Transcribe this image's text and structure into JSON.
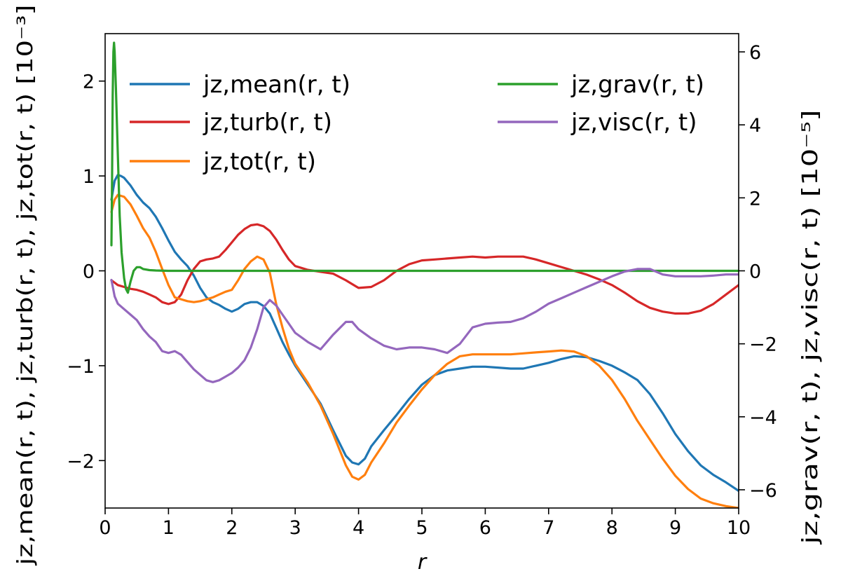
{
  "chart_data": {
    "type": "line",
    "xlabel": "r",
    "ylabel_left": "j̇z,mean(r, t),  j̇z,turb(r, t),  j̇z,tot(r, t) [10⁻³]",
    "ylabel_right": "j̇z,grav(r, t),  j̇z,visc(r, t) [10⁻⁵]",
    "xlim": [
      0,
      10
    ],
    "ylim_left": [
      -2.5,
      2.5
    ],
    "ylim_right": [
      -6.5,
      6.5
    ],
    "grid": false,
    "legend_placement": "top",
    "x_ticks": [
      "0",
      "1",
      "2",
      "3",
      "4",
      "5",
      "6",
      "7",
      "8",
      "9",
      "10"
    ],
    "y_ticks_left": [
      "−2",
      "−1",
      "0",
      "1",
      "2"
    ],
    "y_ticks_right": [
      "−6",
      "−4",
      "−2",
      "0",
      "2",
      "4",
      "6"
    ],
    "series": [
      {
        "name": "j̇z,mean(r, t)",
        "axis": "left",
        "color": "#1f77b4",
        "x": [
          0.1,
          0.15,
          0.2,
          0.25,
          0.3,
          0.4,
          0.5,
          0.6,
          0.7,
          0.8,
          0.9,
          1.0,
          1.1,
          1.2,
          1.3,
          1.4,
          1.5,
          1.6,
          1.7,
          1.8,
          1.9,
          2.0,
          2.1,
          2.2,
          2.3,
          2.4,
          2.5,
          2.6,
          2.7,
          2.8,
          2.9,
          3.0,
          3.2,
          3.4,
          3.6,
          3.8,
          3.9,
          4.0,
          4.1,
          4.2,
          4.4,
          4.6,
          4.8,
          5.0,
          5.2,
          5.4,
          5.6,
          5.8,
          6.0,
          6.2,
          6.4,
          6.6,
          6.8,
          7.0,
          7.2,
          7.4,
          7.6,
          7.8,
          8.0,
          8.2,
          8.4,
          8.6,
          8.8,
          9.0,
          9.2,
          9.4,
          9.6,
          9.8,
          10.0
        ],
        "y": [
          0.75,
          0.95,
          1.01,
          1.0,
          0.98,
          0.9,
          0.8,
          0.72,
          0.66,
          0.57,
          0.45,
          0.32,
          0.2,
          0.12,
          0.05,
          -0.05,
          -0.18,
          -0.28,
          -0.33,
          -0.36,
          -0.4,
          -0.43,
          -0.4,
          -0.35,
          -0.33,
          -0.33,
          -0.37,
          -0.45,
          -0.6,
          -0.75,
          -0.88,
          -1.0,
          -1.2,
          -1.4,
          -1.68,
          -1.95,
          -2.02,
          -2.04,
          -1.98,
          -1.85,
          -1.68,
          -1.52,
          -1.35,
          -1.2,
          -1.1,
          -1.05,
          -1.03,
          -1.01,
          -1.01,
          -1.02,
          -1.03,
          -1.03,
          -1.0,
          -0.97,
          -0.93,
          -0.9,
          -0.91,
          -0.95,
          -1.0,
          -1.07,
          -1.15,
          -1.3,
          -1.5,
          -1.72,
          -1.9,
          -2.05,
          -2.15,
          -2.23,
          -2.32
        ]
      },
      {
        "name": "j̇z,turb(r, t)",
        "axis": "left",
        "color": "#d62728",
        "x": [
          0.1,
          0.2,
          0.3,
          0.4,
          0.5,
          0.6,
          0.7,
          0.8,
          0.9,
          1.0,
          1.1,
          1.2,
          1.3,
          1.4,
          1.5,
          1.6,
          1.7,
          1.8,
          1.9,
          2.0,
          2.1,
          2.2,
          2.3,
          2.4,
          2.5,
          2.6,
          2.7,
          2.8,
          2.9,
          3.0,
          3.2,
          3.4,
          3.6,
          3.8,
          4.0,
          4.2,
          4.4,
          4.6,
          4.8,
          5.0,
          5.2,
          5.4,
          5.6,
          5.8,
          6.0,
          6.2,
          6.4,
          6.6,
          6.8,
          7.0,
          7.2,
          7.4,
          7.6,
          7.8,
          8.0,
          8.2,
          8.4,
          8.6,
          8.8,
          9.0,
          9.2,
          9.4,
          9.6,
          9.8,
          10.0
        ],
        "y": [
          -0.1,
          -0.15,
          -0.17,
          -0.19,
          -0.2,
          -0.22,
          -0.25,
          -0.28,
          -0.33,
          -0.35,
          -0.33,
          -0.25,
          -0.1,
          0.02,
          0.1,
          0.12,
          0.13,
          0.15,
          0.22,
          0.3,
          0.38,
          0.44,
          0.48,
          0.49,
          0.47,
          0.42,
          0.33,
          0.22,
          0.12,
          0.05,
          0.01,
          -0.01,
          -0.03,
          -0.1,
          -0.18,
          -0.17,
          -0.1,
          0.0,
          0.07,
          0.11,
          0.12,
          0.13,
          0.14,
          0.15,
          0.14,
          0.15,
          0.15,
          0.15,
          0.12,
          0.08,
          0.04,
          0.0,
          -0.04,
          -0.09,
          -0.15,
          -0.23,
          -0.32,
          -0.39,
          -0.43,
          -0.45,
          -0.45,
          -0.42,
          -0.35,
          -0.25,
          -0.15
        ]
      },
      {
        "name": "j̇z,tot(r, t)",
        "axis": "left",
        "color": "#ff7f0e",
        "x": [
          0.1,
          0.15,
          0.2,
          0.25,
          0.3,
          0.4,
          0.5,
          0.6,
          0.7,
          0.8,
          0.9,
          1.0,
          1.1,
          1.2,
          1.3,
          1.4,
          1.5,
          1.6,
          1.7,
          1.8,
          1.9,
          2.0,
          2.1,
          2.2,
          2.3,
          2.4,
          2.5,
          2.6,
          2.7,
          2.8,
          2.9,
          3.0,
          3.2,
          3.4,
          3.6,
          3.8,
          3.9,
          4.0,
          4.1,
          4.2,
          4.4,
          4.6,
          4.8,
          5.0,
          5.2,
          5.4,
          5.6,
          5.8,
          6.0,
          6.2,
          6.4,
          6.6,
          6.8,
          7.0,
          7.2,
          7.4,
          7.6,
          7.8,
          8.0,
          8.2,
          8.4,
          8.6,
          8.8,
          9.0,
          9.2,
          9.4,
          9.6,
          9.8,
          10.0
        ],
        "y": [
          0.62,
          0.75,
          0.8,
          0.79,
          0.78,
          0.7,
          0.58,
          0.45,
          0.35,
          0.2,
          0.02,
          -0.15,
          -0.28,
          -0.3,
          -0.32,
          -0.33,
          -0.32,
          -0.3,
          -0.28,
          -0.25,
          -0.22,
          -0.2,
          -0.1,
          0.02,
          0.1,
          0.15,
          0.12,
          -0.02,
          -0.35,
          -0.6,
          -0.82,
          -0.98,
          -1.18,
          -1.42,
          -1.72,
          -2.05,
          -2.17,
          -2.2,
          -2.15,
          -2.02,
          -1.82,
          -1.6,
          -1.42,
          -1.25,
          -1.1,
          -0.98,
          -0.9,
          -0.88,
          -0.88,
          -0.88,
          -0.88,
          -0.87,
          -0.86,
          -0.85,
          -0.84,
          -0.85,
          -0.9,
          -1.0,
          -1.15,
          -1.35,
          -1.58,
          -1.78,
          -1.98,
          -2.16,
          -2.3,
          -2.4,
          -2.45,
          -2.48,
          -2.5
        ]
      },
      {
        "name": "j̇z,grav(r, t)",
        "axis": "right",
        "color": "#2ca02c",
        "x": [
          0.1,
          0.11,
          0.12,
          0.13,
          0.14,
          0.15,
          0.17,
          0.2,
          0.23,
          0.26,
          0.3,
          0.33,
          0.36,
          0.4,
          0.45,
          0.5,
          0.55,
          0.6,
          0.7,
          0.8,
          1.0,
          2.0,
          3.0,
          4.0,
          5.0,
          6.0,
          7.0,
          8.0,
          9.0,
          10.0
        ],
        "y": [
          0.7,
          2.5,
          4.8,
          6.0,
          6.25,
          6.0,
          5.0,
          3.2,
          1.5,
          0.5,
          -0.2,
          -0.5,
          -0.6,
          -0.3,
          0.0,
          0.1,
          0.1,
          0.05,
          0.02,
          0.01,
          0.0,
          0.0,
          0.0,
          0.0,
          0.0,
          0.0,
          0.0,
          0.0,
          0.0,
          0.0
        ]
      },
      {
        "name": "j̇z,visc(r, t)",
        "axis": "right",
        "color": "#9467bd",
        "x": [
          0.1,
          0.15,
          0.2,
          0.3,
          0.4,
          0.5,
          0.6,
          0.7,
          0.8,
          0.9,
          1.0,
          1.1,
          1.2,
          1.3,
          1.4,
          1.5,
          1.6,
          1.7,
          1.8,
          1.9,
          2.0,
          2.1,
          2.2,
          2.3,
          2.4,
          2.5,
          2.6,
          2.7,
          2.8,
          2.9,
          3.0,
          3.2,
          3.4,
          3.6,
          3.8,
          3.9,
          4.0,
          4.2,
          4.4,
          4.6,
          4.8,
          5.0,
          5.2,
          5.4,
          5.6,
          5.8,
          6.0,
          6.2,
          6.4,
          6.6,
          6.8,
          7.0,
          7.2,
          7.4,
          7.6,
          7.8,
          8.0,
          8.2,
          8.4,
          8.6,
          8.8,
          9.0,
          9.2,
          9.4,
          9.6,
          9.8,
          10.0
        ],
        "y": [
          -0.25,
          -0.7,
          -0.9,
          -1.05,
          -1.2,
          -1.35,
          -1.6,
          -1.8,
          -1.95,
          -2.2,
          -2.25,
          -2.2,
          -2.3,
          -2.5,
          -2.7,
          -2.85,
          -3.0,
          -3.05,
          -3.0,
          -2.9,
          -2.8,
          -2.65,
          -2.45,
          -2.1,
          -1.6,
          -1.0,
          -0.8,
          -0.95,
          -1.2,
          -1.45,
          -1.7,
          -1.95,
          -2.15,
          -1.75,
          -1.4,
          -1.4,
          -1.6,
          -1.85,
          -2.05,
          -2.15,
          -2.1,
          -2.1,
          -2.15,
          -2.25,
          -2.0,
          -1.55,
          -1.45,
          -1.42,
          -1.4,
          -1.3,
          -1.12,
          -0.9,
          -0.75,
          -0.6,
          -0.45,
          -0.3,
          -0.15,
          -0.02,
          0.05,
          0.05,
          -0.1,
          -0.15,
          -0.15,
          -0.15,
          -0.13,
          -0.1,
          -0.1
        ]
      }
    ]
  }
}
